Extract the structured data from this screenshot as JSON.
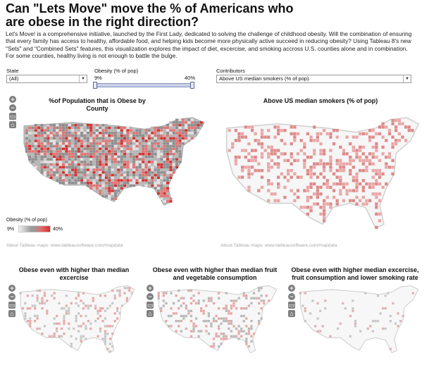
{
  "header": {
    "title": "Can \"Lets Move\" move the % of Americans who are obese in the right direction?",
    "description": "Let's Move! is a comprehensive initiative, launched by the First Lady, dedicated to solving the challenge of childhood obesity.  Will the combination of ensuring that every family has access to healthy, affordable food, and helping kids become more physically active succeed in reducing obesity? Using Tableau 8's new \"Sets\" and \"Combined Sets\" features, this visualization explores the impact of diet, excercise, and smoking accross U.S. counties alone and in combination.  For some counties, healthy living is not enough to battle the bulge."
  },
  "filters": {
    "state": {
      "label": "State",
      "value": "(All)"
    },
    "obesity": {
      "label": "Obesity (% of pop)",
      "min_label": "9%",
      "max_label": "40%",
      "selected_min_pct": 9,
      "selected_max_pct": 40
    },
    "contributors": {
      "label": "Contributors",
      "value": "Above US median smokers (% of pop)"
    }
  },
  "panels": {
    "obese_by_county": {
      "title": "%of Population that is Obese by County",
      "credit": "About Tableau maps: www.tableausoftware.com/mapdata"
    },
    "median_smokers": {
      "title": "Above US median smokers (% of pop)",
      "credit": "About Tableau maps: www.tableausoftware.com/mapdata"
    },
    "exercise": {
      "title": "Obese even with higher than median excercise"
    },
    "fruit_veg": {
      "title": "Obese even with higher than median fruit and vegetable consumption"
    },
    "combined": {
      "title": "Obese even with higher median excercise, fruit consumption and lower smoking rate"
    }
  },
  "legend": {
    "title": "Obesity (% of pop)",
    "min_label": "9%",
    "max_label": "40%"
  },
  "toolbar": {
    "zoom_in": "+",
    "zoom_out": "−",
    "select": "▭",
    "home": "⌂"
  },
  "colors": {
    "obese_high": "#d7302f",
    "obese_mid": "#e57373",
    "obese_low": "#9e9e9e",
    "county_light": "#d8d8d8",
    "pink": "#e9a7a7"
  }
}
